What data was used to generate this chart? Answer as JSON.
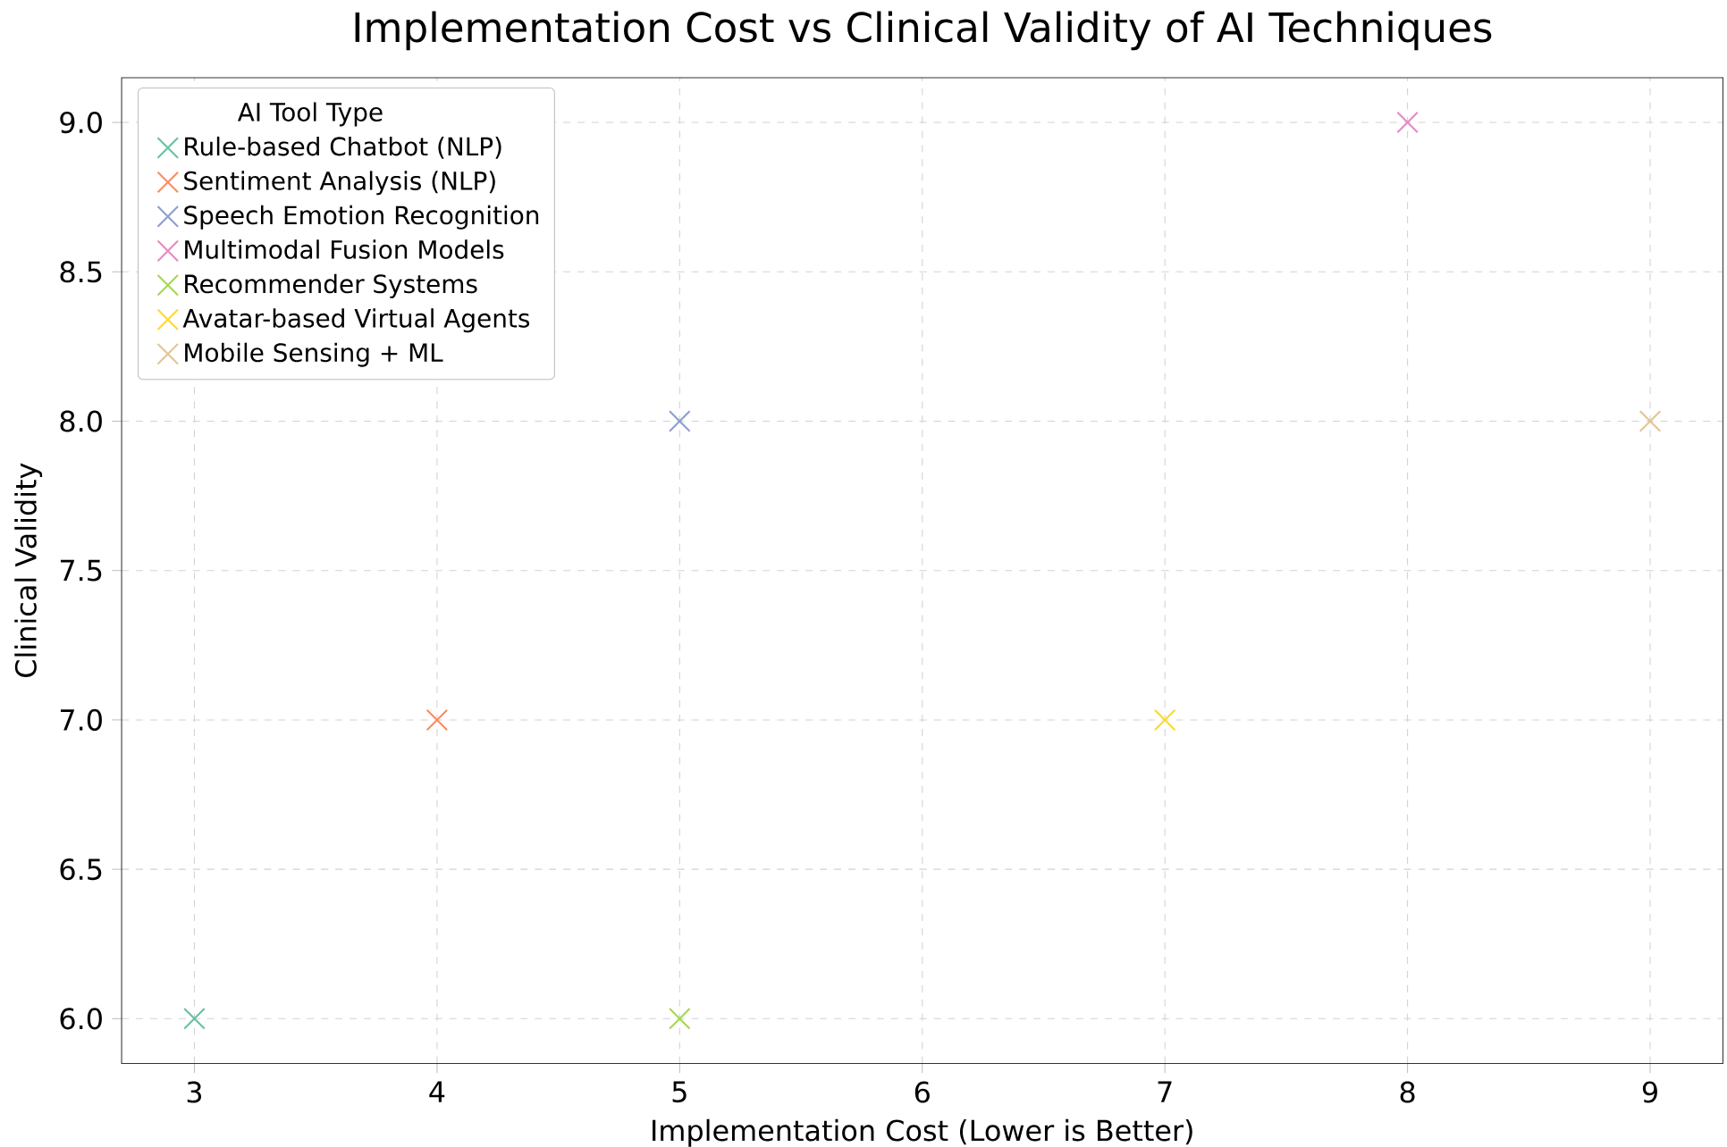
{
  "chart_data": {
    "type": "scatter",
    "title": "Implementation Cost vs Clinical Validity of AI Techniques",
    "xlabel": "Implementation Cost (Lower is Better)",
    "ylabel": "Clinical Validity",
    "legend_title": "AI Tool Type",
    "series": [
      {
        "name": "Rule-based Chatbot (NLP)",
        "color": "#66c2a5",
        "x": [
          3
        ],
        "values": [
          6
        ]
      },
      {
        "name": "Sentiment Analysis (NLP)",
        "color": "#fc8d62",
        "x": [
          4
        ],
        "values": [
          7
        ]
      },
      {
        "name": "Speech Emotion Recognition",
        "color": "#8da0cb",
        "x": [
          5
        ],
        "values": [
          8
        ]
      },
      {
        "name": "Multimodal Fusion Models",
        "color": "#e78ac3",
        "x": [
          8
        ],
        "values": [
          9
        ]
      },
      {
        "name": "Recommender Systems",
        "color": "#a6d854",
        "x": [
          5
        ],
        "values": [
          6
        ]
      },
      {
        "name": "Avatar-based Virtual Agents",
        "color": "#ffd92f",
        "x": [
          7
        ],
        "values": [
          7
        ]
      },
      {
        "name": "Mobile Sensing + ML",
        "color": "#e5c494",
        "x": [
          9
        ],
        "values": [
          8
        ]
      }
    ],
    "xlim": [
      2.7,
      9.3
    ],
    "ylim": [
      5.85,
      9.15
    ],
    "xticks": [
      3,
      4,
      5,
      6,
      7,
      8,
      9
    ],
    "yticks": [
      {
        "value": 6,
        "label": "6.0"
      },
      {
        "value": 6.5,
        "label": "6.5"
      },
      {
        "value": 7,
        "label": "7.0"
      },
      {
        "value": 7.5,
        "label": "7.5"
      },
      {
        "value": 8,
        "label": "8.0"
      },
      {
        "value": 8.5,
        "label": "8.5"
      },
      {
        "value": 9,
        "label": "9.0"
      }
    ],
    "grid": true,
    "legend": "top left",
    "marker": "cross"
  }
}
